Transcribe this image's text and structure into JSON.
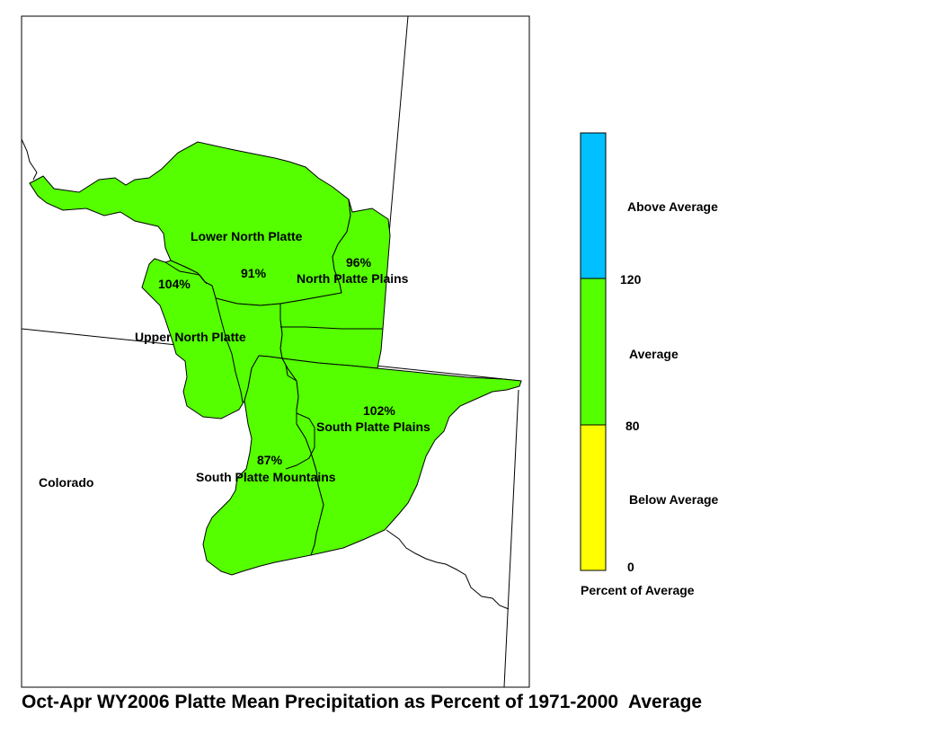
{
  "title": "Oct-Apr WY2006 Platte Mean Precipitation as Percent of 1971-2000  Average",
  "colors": {
    "above_average": "#00C0FF",
    "average": "#55FF00",
    "below_average": "#FFFF00"
  },
  "basins": [
    {
      "name": "Lower North Platte",
      "percent": "91%",
      "category": "average"
    },
    {
      "name": "North Platte Plains",
      "percent": "96%",
      "category": "average"
    },
    {
      "name": "Upper North Platte",
      "percent": "104%",
      "category": "average"
    },
    {
      "name": "South Platte Plains",
      "percent": "102%",
      "category": "average"
    },
    {
      "name": "South Platte Mountains",
      "percent": "87%",
      "category": "average"
    }
  ],
  "state_label": "Colorado",
  "legend": {
    "title": "Percent of Average",
    "categories": [
      {
        "label": "Above Average",
        "color_key": "above_average"
      },
      {
        "label": "Average",
        "color_key": "average"
      },
      {
        "label": "Below Average",
        "color_key": "below_average"
      }
    ],
    "breaks": [
      "120",
      "80",
      "0"
    ]
  }
}
